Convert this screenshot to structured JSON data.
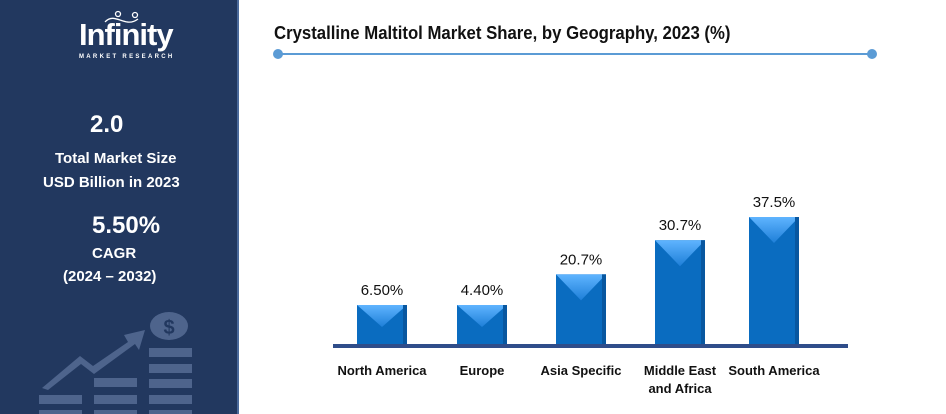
{
  "brand": {
    "name": "Infinity",
    "tagline": "MARKET RESEARCH"
  },
  "stats": {
    "market_size_value": "2.0",
    "market_size_label_1": "Total Market Size",
    "market_size_label_2": "USD Billion in 2023",
    "cagr_value": "5.50%",
    "cagr_label": "CAGR",
    "cagr_period": "(2024 – 2032)"
  },
  "chart_data": {
    "type": "bar",
    "title": "Crystalline Maltitol Market Share, by Geography, 2023 (%)",
    "categories": [
      "North America",
      "Europe",
      "Asia Specific",
      "Middle East and Africa",
      "South America"
    ],
    "category_lines": [
      [
        "North America"
      ],
      [
        "Europe"
      ],
      [
        "Asia Specific"
      ],
      [
        "Middle East",
        "and Africa"
      ],
      [
        "South America"
      ]
    ],
    "values": [
      6.5,
      4.4,
      20.7,
      30.7,
      37.5
    ],
    "data_labels": [
      "6.50%",
      "4.40%",
      "20.7%",
      "30.7%",
      "37.5%"
    ],
    "xlabel": "",
    "ylabel": "",
    "grid": false,
    "bar_color": "#0a6cc0",
    "axis_color": "#2f4d8a"
  }
}
